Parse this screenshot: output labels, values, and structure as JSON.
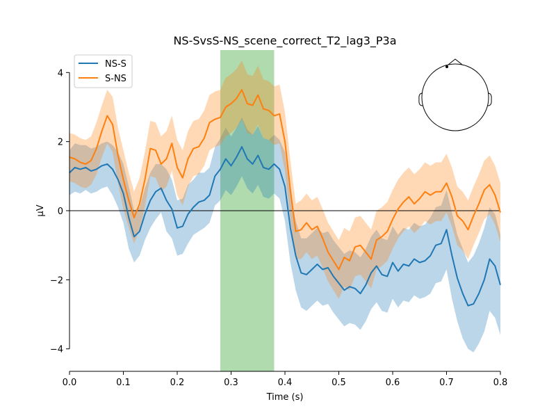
{
  "chart_data": {
    "type": "line",
    "title": "NS-SvsS-NS_scene_correct_T2_lag3_P3a",
    "xlabel": "Time (s)",
    "ylabel": "µV",
    "xlim": [
      0.0,
      0.8
    ],
    "ylim": [
      -4.65,
      4.65
    ],
    "x_ticks": [
      0.0,
      0.1,
      0.2,
      0.3,
      0.4,
      0.5,
      0.6,
      0.7,
      0.8
    ],
    "x_tick_labels": [
      "0.0",
      "0.1",
      "0.2",
      "0.3",
      "0.4",
      "0.5",
      "0.6",
      "0.7",
      "0.8"
    ],
    "y_ticks": [
      -4,
      -2,
      0,
      2,
      4
    ],
    "y_tick_labels": [
      "−4",
      "−2",
      "0",
      "2",
      "4"
    ],
    "highlight_window": {
      "start": 0.28,
      "end": 0.38,
      "color": "#2ca02c"
    },
    "zero_line": true,
    "grid": false,
    "legend_position": "top-left",
    "inset": "head-sensor-map",
    "series": [
      {
        "name": "NS-S",
        "color": "#1f77b4",
        "x": [
          0.0,
          0.01,
          0.02,
          0.03,
          0.04,
          0.05,
          0.06,
          0.07,
          0.08,
          0.09,
          0.1,
          0.11,
          0.12,
          0.13,
          0.14,
          0.15,
          0.16,
          0.17,
          0.18,
          0.19,
          0.2,
          0.21,
          0.22,
          0.23,
          0.24,
          0.25,
          0.26,
          0.27,
          0.28,
          0.29,
          0.3,
          0.31,
          0.32,
          0.33,
          0.34,
          0.35,
          0.36,
          0.37,
          0.38,
          0.39,
          0.4,
          0.41,
          0.42,
          0.43,
          0.44,
          0.45,
          0.46,
          0.47,
          0.48,
          0.49,
          0.5,
          0.51,
          0.52,
          0.53,
          0.54,
          0.55,
          0.56,
          0.57,
          0.58,
          0.59,
          0.6,
          0.61,
          0.62,
          0.63,
          0.64,
          0.65,
          0.66,
          0.67,
          0.68,
          0.69,
          0.7,
          0.71,
          0.72,
          0.73,
          0.74,
          0.75,
          0.76,
          0.77,
          0.78,
          0.79,
          0.8
        ],
        "mean": [
          1.1,
          1.25,
          1.2,
          1.25,
          1.15,
          1.2,
          1.3,
          1.35,
          1.2,
          0.9,
          0.5,
          -0.2,
          -0.75,
          -0.6,
          -0.1,
          0.3,
          0.55,
          0.65,
          0.3,
          0.05,
          -0.5,
          -0.45,
          -0.1,
          0.1,
          0.25,
          0.3,
          0.45,
          1.0,
          1.2,
          1.5,
          1.3,
          1.55,
          1.85,
          1.5,
          1.35,
          1.6,
          1.25,
          1.2,
          1.35,
          1.2,
          0.7,
          -0.5,
          -1.3,
          -1.8,
          -1.85,
          -1.7,
          -1.55,
          -1.7,
          -1.65,
          -1.9,
          -2.1,
          -2.3,
          -2.2,
          -2.25,
          -2.4,
          -2.15,
          -1.8,
          -1.6,
          -1.85,
          -1.9,
          -1.5,
          -1.75,
          -1.55,
          -1.6,
          -1.4,
          -1.5,
          -1.45,
          -1.3,
          -1.0,
          -0.95,
          -0.55,
          -1.3,
          -1.95,
          -2.4,
          -2.75,
          -2.7,
          -2.4,
          -2.0,
          -1.4,
          -1.6,
          -2.15
        ],
        "lower": [
          0.45,
          0.55,
          0.5,
          0.6,
          0.5,
          0.55,
          0.65,
          0.7,
          0.45,
          0.1,
          -0.35,
          -1.1,
          -1.5,
          -1.3,
          -0.85,
          -0.5,
          -0.25,
          -0.05,
          -0.6,
          -0.8,
          -1.3,
          -1.25,
          -0.95,
          -0.7,
          -0.6,
          -0.5,
          -0.35,
          0.15,
          0.3,
          0.6,
          0.45,
          0.7,
          1.0,
          0.65,
          0.5,
          0.75,
          0.4,
          0.35,
          0.5,
          0.35,
          -0.3,
          -1.5,
          -2.3,
          -2.8,
          -2.9,
          -2.75,
          -2.6,
          -2.75,
          -2.7,
          -2.95,
          -3.15,
          -3.35,
          -3.25,
          -3.3,
          -3.45,
          -3.2,
          -2.85,
          -2.65,
          -2.9,
          -2.95,
          -2.55,
          -2.8,
          -2.6,
          -2.65,
          -2.45,
          -2.55,
          -2.5,
          -2.4,
          -2.1,
          -2.05,
          -1.7,
          -2.55,
          -3.2,
          -3.7,
          -4.0,
          -4.1,
          -3.85,
          -3.5,
          -2.9,
          -3.1,
          -3.6
        ],
        "upper": [
          1.75,
          1.95,
          1.9,
          1.9,
          1.8,
          1.85,
          1.95,
          2.0,
          1.9,
          1.7,
          1.35,
          0.7,
          0.0,
          0.1,
          0.65,
          1.1,
          1.35,
          1.35,
          1.2,
          0.9,
          0.3,
          0.35,
          0.75,
          0.9,
          1.1,
          1.1,
          1.25,
          1.85,
          2.1,
          2.4,
          2.15,
          2.4,
          2.7,
          2.35,
          2.2,
          2.45,
          2.1,
          2.05,
          2.2,
          2.05,
          1.7,
          0.5,
          -0.3,
          -0.8,
          -0.8,
          -0.65,
          -0.5,
          -0.65,
          -0.6,
          -0.85,
          -1.05,
          -1.25,
          -1.15,
          -1.2,
          -1.35,
          -1.1,
          -0.75,
          -0.55,
          -0.8,
          -0.85,
          -0.45,
          -0.7,
          -0.5,
          -0.55,
          -0.35,
          -0.45,
          -0.4,
          -0.2,
          0.1,
          0.15,
          0.6,
          -0.05,
          -0.7,
          -1.1,
          -1.5,
          -1.3,
          -0.95,
          -0.5,
          0.1,
          -0.1,
          -0.7
        ]
      },
      {
        "name": "S-NS",
        "color": "#ff7f0e",
        "x": [
          0.0,
          0.01,
          0.02,
          0.03,
          0.04,
          0.05,
          0.06,
          0.07,
          0.08,
          0.09,
          0.1,
          0.11,
          0.12,
          0.13,
          0.14,
          0.15,
          0.16,
          0.17,
          0.18,
          0.19,
          0.2,
          0.21,
          0.22,
          0.23,
          0.24,
          0.25,
          0.26,
          0.27,
          0.28,
          0.29,
          0.3,
          0.31,
          0.32,
          0.33,
          0.34,
          0.35,
          0.36,
          0.37,
          0.38,
          0.39,
          0.4,
          0.41,
          0.42,
          0.43,
          0.44,
          0.45,
          0.46,
          0.47,
          0.48,
          0.49,
          0.5,
          0.51,
          0.52,
          0.53,
          0.54,
          0.55,
          0.56,
          0.57,
          0.58,
          0.59,
          0.6,
          0.61,
          0.62,
          0.63,
          0.64,
          0.65,
          0.66,
          0.67,
          0.68,
          0.69,
          0.7,
          0.71,
          0.72,
          0.73,
          0.74,
          0.75,
          0.76,
          0.77,
          0.78,
          0.79,
          0.8
        ],
        "mean": [
          1.55,
          1.5,
          1.4,
          1.35,
          1.45,
          1.8,
          2.3,
          2.75,
          2.5,
          1.6,
          0.9,
          0.3,
          -0.2,
          0.2,
          0.9,
          1.8,
          1.75,
          1.35,
          1.5,
          1.95,
          1.25,
          0.95,
          1.5,
          1.8,
          1.85,
          2.1,
          2.55,
          2.65,
          2.7,
          3.0,
          3.1,
          3.25,
          3.5,
          3.1,
          3.05,
          3.35,
          2.95,
          2.9,
          2.75,
          2.8,
          2.0,
          0.6,
          -0.6,
          -0.55,
          -0.35,
          -0.55,
          -0.45,
          -0.8,
          -1.2,
          -1.45,
          -1.7,
          -1.35,
          -1.45,
          -1.05,
          -1.0,
          -1.2,
          -1.4,
          -0.85,
          -0.75,
          -0.6,
          -0.25,
          0.05,
          0.25,
          0.4,
          0.2,
          0.35,
          0.55,
          0.45,
          0.55,
          0.55,
          0.8,
          0.4,
          -0.15,
          -0.3,
          -0.55,
          -0.15,
          0.2,
          0.6,
          0.75,
          0.45,
          -0.05
        ],
        "lower": [
          0.85,
          0.8,
          0.7,
          0.65,
          0.75,
          1.05,
          1.55,
          1.95,
          1.7,
          0.8,
          0.05,
          -0.5,
          -0.95,
          -0.55,
          0.1,
          1.0,
          0.95,
          0.55,
          0.7,
          1.15,
          0.45,
          0.15,
          0.7,
          1.0,
          1.05,
          1.3,
          1.75,
          1.85,
          1.9,
          2.15,
          2.25,
          2.4,
          2.65,
          2.25,
          2.2,
          2.5,
          2.1,
          2.05,
          1.9,
          1.95,
          1.15,
          -0.25,
          -1.4,
          -1.4,
          -1.2,
          -1.4,
          -1.3,
          -1.65,
          -2.05,
          -2.3,
          -2.55,
          -2.2,
          -2.3,
          -1.9,
          -1.85,
          -2.05,
          -2.25,
          -1.7,
          -1.6,
          -1.45,
          -1.1,
          -0.8,
          -0.6,
          -0.45,
          -0.65,
          -0.5,
          -0.3,
          -0.4,
          -0.3,
          -0.3,
          -0.05,
          -0.45,
          -1.0,
          -1.15,
          -1.4,
          -1.0,
          -0.65,
          -0.25,
          -0.1,
          -0.4,
          -0.9
        ],
        "upper": [
          2.25,
          2.2,
          2.1,
          2.05,
          2.15,
          2.55,
          3.05,
          3.5,
          3.3,
          2.4,
          1.75,
          1.1,
          0.55,
          0.95,
          1.7,
          2.6,
          2.55,
          2.15,
          2.3,
          2.75,
          2.05,
          1.75,
          2.3,
          2.6,
          2.65,
          2.9,
          3.35,
          3.45,
          3.5,
          3.85,
          3.95,
          4.1,
          4.35,
          3.95,
          3.9,
          4.2,
          3.8,
          3.75,
          3.6,
          3.65,
          2.85,
          1.45,
          0.2,
          0.3,
          0.5,
          0.3,
          0.4,
          0.05,
          -0.35,
          -0.6,
          -0.85,
          -0.5,
          -0.6,
          -0.2,
          -0.15,
          -0.35,
          -0.55,
          0.0,
          0.1,
          0.25,
          0.6,
          0.9,
          1.1,
          1.25,
          1.05,
          1.2,
          1.4,
          1.3,
          1.4,
          1.4,
          1.65,
          1.25,
          0.7,
          0.55,
          0.3,
          0.7,
          1.05,
          1.45,
          1.6,
          1.3,
          0.8
        ]
      }
    ]
  }
}
